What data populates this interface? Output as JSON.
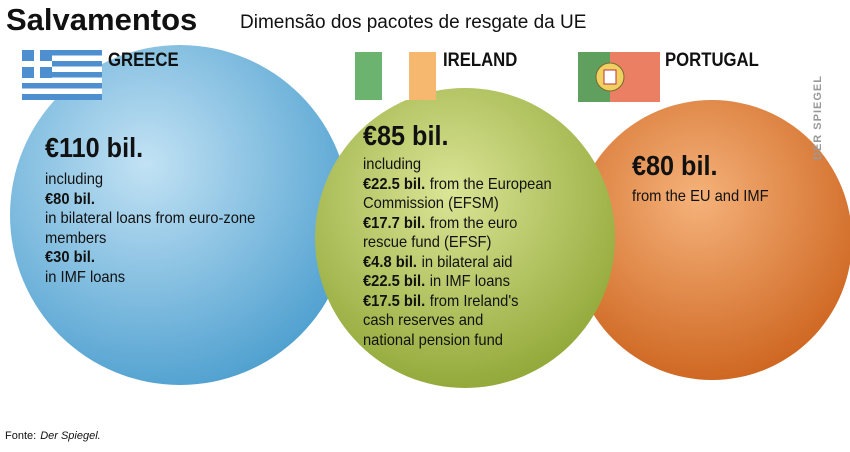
{
  "header": {
    "title": "Salvamentos",
    "subtitle": "Dimensão dos pacotes de resgate da UE"
  },
  "countries": [
    {
      "name": "GREECE",
      "amount": "€110 bil.",
      "lines": [
        {
          "text": "including"
        },
        {
          "bold": "€80 bil."
        },
        {
          "text": "in bilateral loans from euro-zone"
        },
        {
          "text": "members"
        },
        {
          "bold": "€30 bil."
        },
        {
          "text": "in IMF loans"
        }
      ]
    },
    {
      "name": "IRELAND",
      "amount": "€85 bil.",
      "lines": [
        {
          "text": "including"
        },
        {
          "bold": "€22.5 bil.",
          "text": "from the European"
        },
        {
          "text": "Commission (EFSM)"
        },
        {
          "bold": "€17.7 bil.",
          "text": "from the euro"
        },
        {
          "text": "rescue fund (EFSF)"
        },
        {
          "bold": "€4.8 bil.",
          "text": "in bilateral aid"
        },
        {
          "bold": "€22.5 bil.",
          "text": "in IMF loans"
        },
        {
          "bold": "€17.5 bil.",
          "text": "from Ireland's"
        },
        {
          "text": "cash reserves and"
        },
        {
          "text": "national pension fund"
        }
      ]
    },
    {
      "name": "PORTUGAL",
      "amount": "€80 bil.",
      "lines": [
        {
          "text": "from the EU and IMF"
        }
      ]
    }
  ],
  "watermark": "DER SPIEGEL",
  "source": {
    "label": "Fonte:",
    "text": "Der Spiegel."
  }
}
